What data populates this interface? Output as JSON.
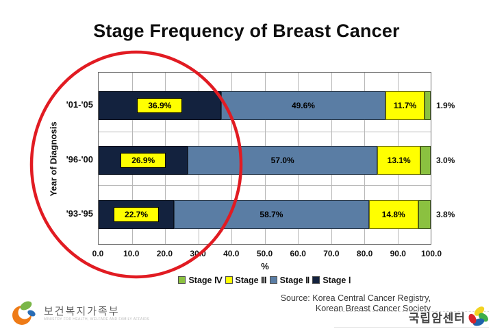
{
  "slide": {
    "title": "Stage Frequency of Breast Cancer",
    "source": {
      "line1": "Source: Korea Central Cancer Registry,",
      "line2": "Korean Breast Cancer Society"
    },
    "footer_left": {
      "icon": "mohw-swirl-logo-icon",
      "org": "보건복지가족부",
      "org_subtitle": "MINISTRY FOR HEALTH, WELFARE AND FAMILY AFFAIRS"
    },
    "footer_right": {
      "icon": "ncc-pinwheel-logo-icon",
      "org": "국립암센터"
    }
  },
  "chart_data": {
    "type": "bar",
    "orientation": "horizontal",
    "stacked": true,
    "title": "Stage Frequency of Breast Cancer",
    "categories": [
      "'01-'05",
      "'96-'00",
      "'93-'95"
    ],
    "series": [
      {
        "name": "Stage Ⅰ",
        "color": "#13223e",
        "values": [
          36.9,
          26.9,
          22.7
        ],
        "label_style": "yellow-box"
      },
      {
        "name": "Stage Ⅱ",
        "color": "#5a7da4",
        "values": [
          49.6,
          57.0,
          58.7
        ]
      },
      {
        "name": "Stage Ⅲ",
        "color": "#ffff00",
        "values": [
          11.7,
          13.1,
          14.8
        ]
      },
      {
        "name": "Stage Ⅳ",
        "color": "#8bc140",
        "values": [
          1.9,
          3.0,
          3.8
        ],
        "label_outside": true
      }
    ],
    "xlabel": "%",
    "ylabel": "Year of Diagnosis",
    "xlim": [
      0,
      100
    ],
    "xticks": [
      "0.0",
      "10.0",
      "20.0",
      "30.0",
      "40.0",
      "50.0",
      "60.0",
      "70.0",
      "80.0",
      "90.0",
      "100.0"
    ],
    "grid": true,
    "legend_position": "bottom",
    "legend": [
      {
        "label": "Stage Ⅳ",
        "color": "#8bc140"
      },
      {
        "label": "Stage Ⅲ",
        "color": "#ffff00"
      },
      {
        "label": "Stage Ⅱ",
        "color": "#5a7da4"
      },
      {
        "label": "Stage Ⅰ",
        "color": "#13223e"
      }
    ],
    "annotation": {
      "shape": "ellipse",
      "color": "#e11b22",
      "note": "hand-drawn red ellipse highlighting the Stage I segments"
    }
  }
}
